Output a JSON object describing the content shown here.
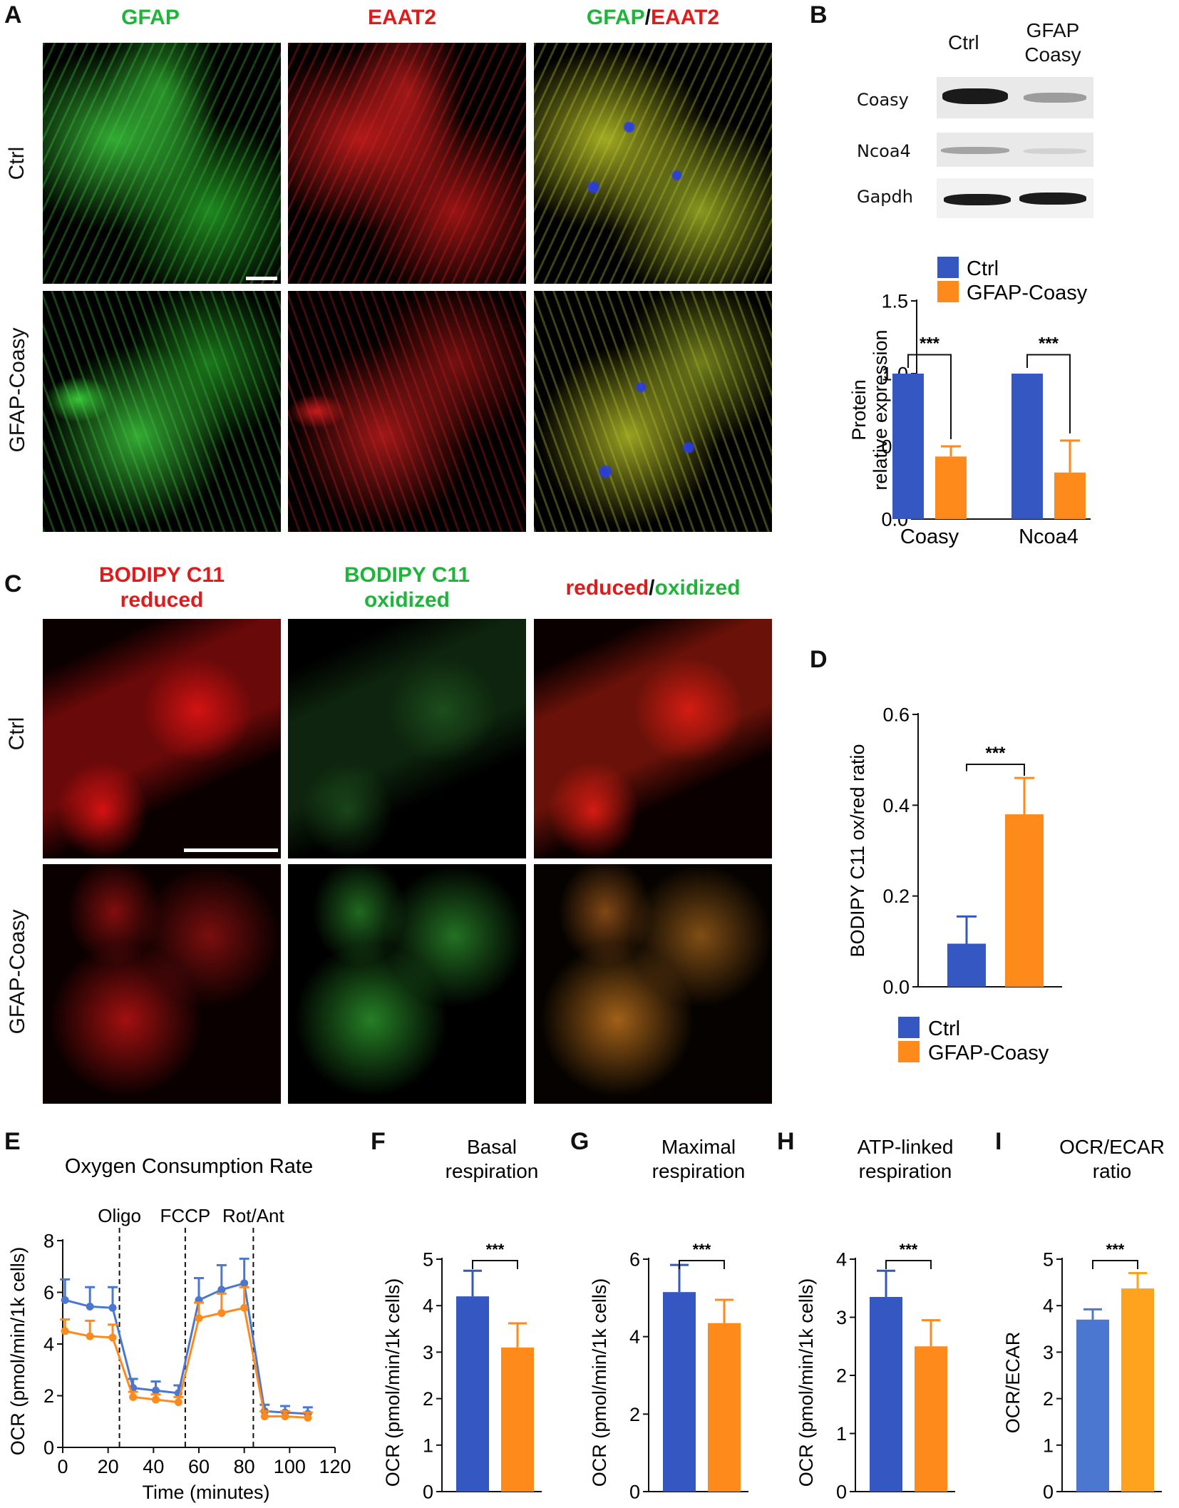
{
  "panels": {
    "A": {
      "letter": "A",
      "headers": [
        {
          "parts": [
            {
              "text": "GFAP",
              "color": "green"
            }
          ]
        },
        {
          "parts": [
            {
              "text": "EAAT2",
              "color": "red"
            }
          ]
        },
        {
          "parts": [
            {
              "text": "GFAP",
              "color": "green"
            },
            {
              "text": "/",
              "color": "dark"
            },
            {
              "text": "EAAT2",
              "color": "red"
            }
          ]
        }
      ],
      "rows": [
        "Ctrl",
        "GFAP-Coasy"
      ]
    },
    "B": {
      "letter": "B",
      "blot_columns": [
        "Ctrl",
        "GFAP Coasy"
      ],
      "blot_rows": [
        "Coasy",
        "Ncoa4",
        "Gapdh"
      ]
    },
    "C": {
      "letter": "C",
      "headers": [
        {
          "line1": "BODIPY C11",
          "line2": "reduced",
          "color": "red"
        },
        {
          "line1": "BODIPY C11",
          "line2": "oxidized",
          "color": "green"
        }
      ],
      "header3": {
        "part1": "reduced",
        "sep": "/",
        "part2": "oxidized"
      },
      "rows": [
        "Ctrl",
        "GFAP-Coasy"
      ]
    },
    "D": {
      "letter": "D"
    },
    "E": {
      "letter": "E"
    },
    "F": {
      "letter": "F"
    },
    "G": {
      "letter": "G"
    },
    "H": {
      "letter": "H"
    },
    "I": {
      "letter": "I"
    }
  },
  "colors": {
    "ctrl": "#3557c1",
    "coasy": "#ff8a1c",
    "ctrl_light": "#4b77d1",
    "coasy_light": "#ffa21d"
  },
  "chart_data": [
    {
      "id": "B",
      "type": "bar",
      "ylabel": "Protein relative expression",
      "categories": [
        "Coasy",
        "Ncoa4"
      ],
      "series": [
        {
          "name": "Ctrl",
          "values": [
            1.0,
            1.0
          ],
          "err": [
            0,
            0
          ]
        },
        {
          "name": "GFAP-Coasy",
          "values": [
            0.43,
            0.32
          ],
          "err": [
            0.07,
            0.22
          ]
        }
      ],
      "ylim": [
        0,
        1.5
      ],
      "yticks": [
        "0.0",
        "0.5",
        "1.0",
        "1.5"
      ],
      "significance": [
        "***",
        "***"
      ],
      "legend": "top"
    },
    {
      "id": "D",
      "type": "bar",
      "ylabel": "BODIPY C11 ox/red ratio",
      "series": [
        {
          "name": "Ctrl",
          "values": [
            0.095
          ],
          "err": [
            0.06
          ]
        },
        {
          "name": "GFAP-Coasy",
          "values": [
            0.38
          ],
          "err": [
            0.08
          ]
        }
      ],
      "ylim": [
        0,
        0.6
      ],
      "yticks": [
        "0.0",
        "0.2",
        "0.4",
        "0.6"
      ],
      "significance": "***",
      "legend": "bottom"
    },
    {
      "id": "E",
      "type": "line",
      "title": "Oxygen Consumption Rate",
      "xlabel": "Time (minutes)",
      "ylabel": "OCR (pmol/min/1k cells)",
      "x": [
        1,
        12,
        22,
        31,
        41,
        51,
        60,
        70,
        80,
        89,
        98,
        108
      ],
      "series": [
        {
          "name": "Ctrl",
          "values": [
            5.7,
            5.45,
            5.4,
            2.3,
            2.2,
            2.1,
            5.7,
            6.1,
            6.35,
            1.4,
            1.35,
            1.3
          ],
          "err": [
            0.8,
            0.75,
            0.8,
            0.35,
            0.35,
            0.3,
            0.85,
            0.95,
            0.95,
            0.25,
            0.25,
            0.25
          ]
        },
        {
          "name": "GFAP-Coasy",
          "values": [
            4.5,
            4.3,
            4.25,
            1.95,
            1.85,
            1.75,
            5.0,
            5.2,
            5.4,
            1.2,
            1.2,
            1.15
          ],
          "err": [
            0.45,
            0.6,
            0.5,
            0.2,
            0.2,
            0.2,
            0.6,
            0.75,
            0.8,
            0.2,
            0.2,
            0.2
          ]
        }
      ],
      "xlim": [
        0,
        120
      ],
      "ylim": [
        0,
        8
      ],
      "xticks": [
        "0",
        "20",
        "40",
        "60",
        "80",
        "100",
        "120"
      ],
      "yticks": [
        "0",
        "2",
        "4",
        "6",
        "8"
      ],
      "injections": [
        {
          "label": "Oligo",
          "x": 25
        },
        {
          "label": "FCCP",
          "x": 54
        },
        {
          "label": "Rot/Ant",
          "x": 84
        }
      ]
    },
    {
      "id": "F",
      "type": "bar",
      "title": "Basal respiration",
      "ylabel": "OCR (pmol/min/1k cells)",
      "series": [
        {
          "name": "Ctrl",
          "values": [
            4.2
          ],
          "err": [
            0.55
          ]
        },
        {
          "name": "GFAP-Coasy",
          "values": [
            3.1
          ],
          "err": [
            0.52
          ]
        }
      ],
      "ylim": [
        0,
        5
      ],
      "yticks": [
        "0",
        "1",
        "2",
        "3",
        "4",
        "5"
      ],
      "significance": "***"
    },
    {
      "id": "G",
      "type": "bar",
      "title": "Maximal respiration",
      "ylabel": "OCR (pmol/min/1k cells)",
      "series": [
        {
          "name": "Ctrl",
          "values": [
            5.15
          ],
          "err": [
            0.7
          ]
        },
        {
          "name": "GFAP-Coasy",
          "values": [
            4.35
          ],
          "err": [
            0.6
          ]
        }
      ],
      "ylim": [
        0,
        6
      ],
      "yticks": [
        "0",
        "2",
        "4",
        "6"
      ],
      "significance": "***"
    },
    {
      "id": "H",
      "type": "bar",
      "title": "ATP-linked respiration",
      "ylabel": "OCR (pmol/min/1k cells)",
      "series": [
        {
          "name": "Ctrl",
          "values": [
            3.35
          ],
          "err": [
            0.45
          ]
        },
        {
          "name": "GFAP-Coasy",
          "values": [
            2.5
          ],
          "err": [
            0.45
          ]
        }
      ],
      "ylim": [
        0,
        4
      ],
      "yticks": [
        "0",
        "1",
        "2",
        "3",
        "4"
      ],
      "significance": "***"
    },
    {
      "id": "I",
      "type": "bar",
      "title": "OCR/ECAR ratio",
      "ylabel": "OCR/ECAR",
      "series": [
        {
          "name": "Ctrl",
          "values": [
            3.7
          ],
          "err": [
            0.22
          ]
        },
        {
          "name": "GFAP-Coasy",
          "values": [
            4.37
          ],
          "err": [
            0.33
          ]
        }
      ],
      "ylim": [
        0,
        5
      ],
      "yticks": [
        "0",
        "1",
        "2",
        "3",
        "4",
        "5"
      ],
      "significance": "***"
    }
  ]
}
